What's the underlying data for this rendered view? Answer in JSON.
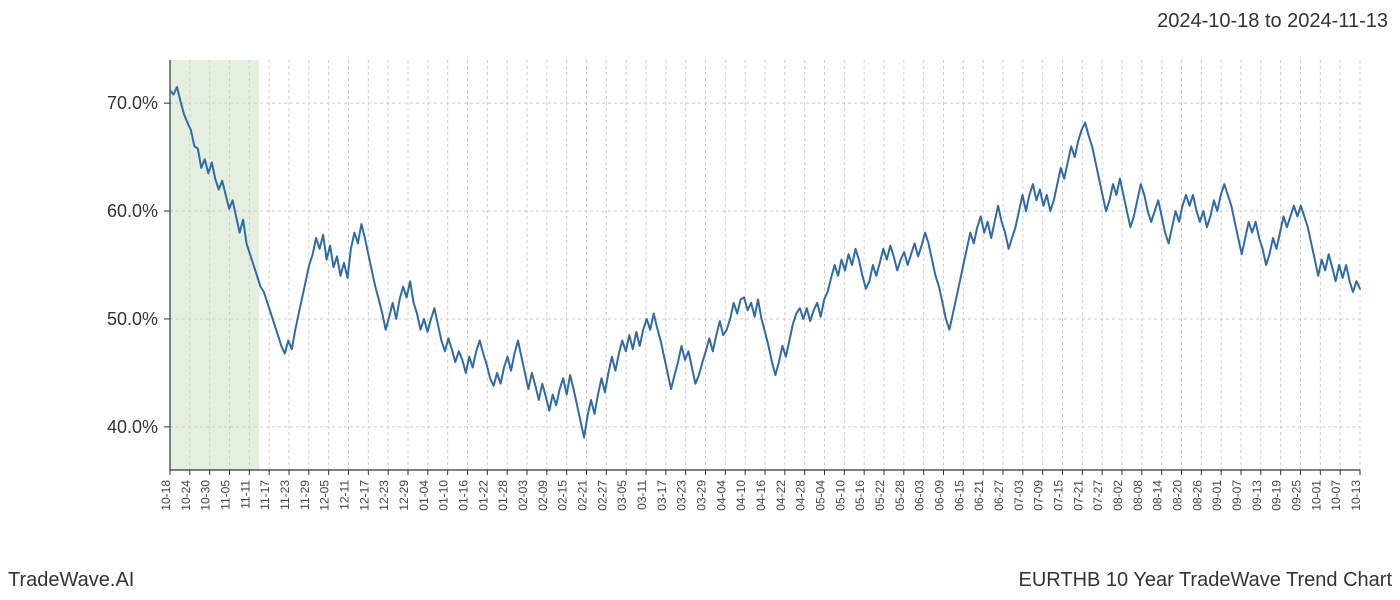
{
  "header": {
    "date_range": "2024-10-18 to 2024-11-13"
  },
  "footer": {
    "left": "TradeWave.AI",
    "right": "EURTHB 10 Year TradeWave Trend Chart"
  },
  "chart": {
    "type": "line",
    "background_color": "#ffffff",
    "grid_color": "#cccccc",
    "axis_color": "#333333",
    "text_color": "#333333",
    "line_color": "#2f6ba8",
    "line_width": 2,
    "highlight_band": {
      "from_label": "10-18",
      "to_label": "11-14",
      "fill_color": "#d9e8d2",
      "opacity": 0.7
    },
    "ylim": [
      36,
      74
    ],
    "yticks": [
      40,
      50,
      60,
      70
    ],
    "ytick_labels": [
      "40.0%",
      "50.0%",
      "60.0%",
      "70.0%"
    ],
    "ylabel_fontsize": 18,
    "xlabel_fontsize": 12,
    "xtick_labels": [
      "10-18",
      "10-24",
      "10-30",
      "11-05",
      "11-11",
      "11-17",
      "11-23",
      "11-29",
      "12-05",
      "12-11",
      "12-17",
      "12-23",
      "12-29",
      "01-04",
      "01-10",
      "01-16",
      "01-22",
      "01-28",
      "02-03",
      "02-09",
      "02-15",
      "02-21",
      "02-27",
      "03-05",
      "03-11",
      "03-17",
      "03-23",
      "03-29",
      "04-04",
      "04-10",
      "04-16",
      "04-22",
      "04-28",
      "05-04",
      "05-10",
      "05-16",
      "05-22",
      "05-28",
      "06-03",
      "06-09",
      "06-15",
      "06-21",
      "06-27",
      "07-03",
      "07-09",
      "07-15",
      "07-21",
      "07-27",
      "08-02",
      "08-08",
      "08-14",
      "08-20",
      "08-26",
      "09-01",
      "09-07",
      "09-13",
      "09-19",
      "09-25",
      "10-01",
      "10-07",
      "10-13"
    ],
    "values": [
      71.2,
      70.8,
      71.5,
      70.2,
      69.0,
      68.2,
      67.5,
      66.0,
      65.8,
      64.0,
      64.8,
      63.5,
      64.5,
      63.0,
      62.0,
      62.8,
      61.5,
      60.2,
      61.0,
      59.5,
      58.0,
      59.2,
      57.0,
      56.0,
      55.0,
      54.0,
      53.0,
      52.5,
      51.5,
      50.5,
      49.5,
      48.5,
      47.5,
      46.8,
      48.0,
      47.2,
      49.0,
      50.5,
      52.0,
      53.5,
      55.0,
      56.0,
      57.5,
      56.5,
      57.8,
      55.5,
      56.8,
      54.8,
      55.8,
      54.0,
      55.2,
      53.8,
      56.5,
      58.0,
      57.0,
      58.8,
      57.5,
      56.0,
      54.5,
      53.0,
      51.8,
      50.5,
      49.0,
      50.2,
      51.5,
      50.0,
      51.8,
      53.0,
      52.0,
      53.5,
      51.5,
      50.5,
      49.0,
      50.0,
      48.8,
      50.0,
      51.0,
      49.5,
      48.0,
      47.0,
      48.2,
      47.2,
      46.0,
      47.0,
      46.2,
      45.0,
      46.5,
      45.5,
      47.0,
      48.0,
      46.8,
      45.8,
      44.5,
      43.8,
      45.0,
      44.0,
      45.5,
      46.5,
      45.2,
      46.8,
      48.0,
      46.5,
      45.0,
      43.5,
      45.0,
      43.8,
      42.5,
      44.0,
      42.8,
      41.5,
      43.0,
      42.0,
      43.5,
      44.5,
      43.0,
      44.8,
      43.5,
      42.0,
      40.5,
      39.0,
      41.0,
      42.5,
      41.2,
      43.0,
      44.5,
      43.2,
      45.0,
      46.5,
      45.2,
      46.8,
      48.0,
      47.0,
      48.5,
      47.2,
      48.8,
      47.5,
      49.0,
      50.0,
      49.0,
      50.5,
      49.2,
      48.0,
      46.5,
      45.0,
      43.5,
      44.8,
      46.0,
      47.5,
      46.2,
      47.0,
      45.5,
      44.0,
      44.8,
      46.0,
      47.0,
      48.2,
      47.0,
      48.5,
      49.8,
      48.5,
      49.0,
      50.0,
      51.5,
      50.5,
      51.8,
      52.0,
      50.8,
      51.5,
      50.2,
      51.8,
      50.0,
      48.8,
      47.5,
      46.0,
      44.8,
      46.0,
      47.5,
      46.5,
      48.0,
      49.5,
      50.5,
      51.0,
      50.0,
      51.0,
      49.8,
      50.8,
      51.5,
      50.2,
      51.8,
      52.5,
      53.8,
      55.0,
      54.0,
      55.5,
      54.5,
      56.0,
      55.0,
      56.5,
      55.5,
      54.0,
      52.8,
      53.5,
      55.0,
      54.0,
      55.2,
      56.5,
      55.5,
      56.8,
      55.8,
      54.5,
      55.5,
      56.2,
      55.0,
      56.0,
      57.0,
      55.8,
      56.8,
      58.0,
      57.0,
      55.5,
      54.0,
      53.0,
      51.5,
      50.0,
      49.0,
      50.5,
      52.0,
      53.5,
      55.0,
      56.5,
      58.0,
      57.0,
      58.5,
      59.5,
      58.0,
      59.0,
      57.5,
      59.0,
      60.5,
      59.0,
      58.0,
      56.5,
      57.5,
      58.5,
      60.0,
      61.5,
      60.0,
      61.5,
      62.5,
      61.0,
      62.0,
      60.5,
      61.5,
      60.0,
      61.0,
      62.5,
      64.0,
      63.0,
      64.5,
      66.0,
      65.0,
      66.5,
      67.5,
      68.2,
      67.0,
      66.0,
      64.5,
      63.0,
      61.5,
      60.0,
      61.0,
      62.5,
      61.5,
      63.0,
      61.5,
      60.0,
      58.5,
      59.5,
      61.0,
      62.5,
      61.5,
      60.0,
      59.0,
      60.0,
      61.0,
      59.5,
      58.0,
      57.0,
      58.5,
      60.0,
      59.0,
      60.5,
      61.5,
      60.5,
      61.5,
      60.0,
      59.0,
      60.0,
      58.5,
      59.5,
      61.0,
      60.0,
      61.5,
      62.5,
      61.5,
      60.5,
      59.0,
      57.5,
      56.0,
      57.5,
      59.0,
      58.0,
      59.0,
      57.5,
      56.5,
      55.0,
      56.0,
      57.5,
      56.5,
      58.0,
      59.5,
      58.5,
      59.5,
      60.5,
      59.5,
      60.5,
      59.5,
      58.5,
      57.0,
      55.5,
      54.0,
      55.5,
      54.5,
      56.0,
      54.8,
      53.5,
      55.0,
      53.8,
      55.0,
      53.5,
      52.5,
      53.5,
      52.8
    ]
  }
}
